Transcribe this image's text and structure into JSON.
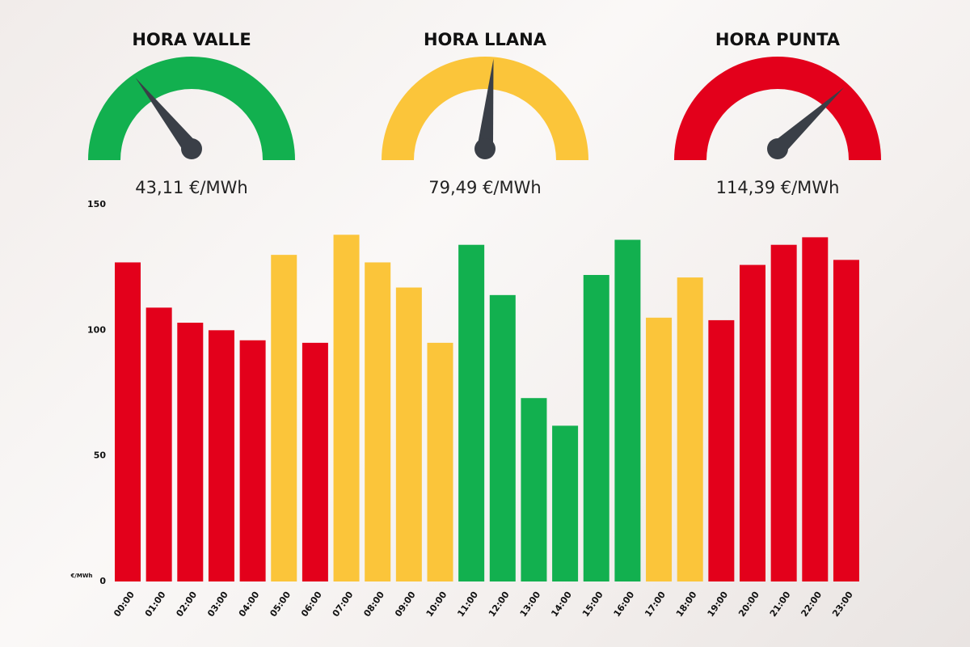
{
  "gauges": [
    {
      "title": "HORA VALLE",
      "value": 43.11,
      "value_label": "43,11 €/MWh",
      "color": "#12b04f"
    },
    {
      "title": "HORA LLANA",
      "value": 79.49,
      "value_label": "79,49 €/MWh",
      "color": "#fbc53a"
    },
    {
      "title": "HORA PUNTA",
      "value": 114.39,
      "value_label": "114,39 €/MWh",
      "color": "#e3001b"
    }
  ],
  "chart_data": {
    "type": "bar",
    "y_label": "€/MWh",
    "categories": [
      "00:00",
      "01:00",
      "02:00",
      "03:00",
      "04:00",
      "05:00",
      "06:00",
      "07:00",
      "08:00",
      "09:00",
      "10:00",
      "11:00",
      "12:00",
      "13:00",
      "14:00",
      "15:00",
      "16:00",
      "17:00",
      "18:00",
      "19:00",
      "20:00",
      "21:00",
      "22:00",
      "23:00"
    ],
    "values": [
      127,
      109,
      103,
      100,
      96,
      130,
      95,
      138,
      127,
      117,
      95,
      134,
      114,
      73,
      62,
      122,
      136,
      105,
      121,
      104,
      126,
      134,
      137,
      128
    ],
    "colors": [
      "#e3001b",
      "#e3001b",
      "#e3001b",
      "#e3001b",
      "#e3001b",
      "#fbc53a",
      "#e3001b",
      "#fbc53a",
      "#fbc53a",
      "#fbc53a",
      "#fbc53a",
      "#12b04f",
      "#12b04f",
      "#12b04f",
      "#12b04f",
      "#12b04f",
      "#12b04f",
      "#fbc53a",
      "#fbc53a",
      "#e3001b",
      "#e3001b",
      "#e3001b",
      "#e3001b",
      "#e3001b"
    ],
    "ylim": [
      0,
      150
    ],
    "yticks": [
      0,
      50,
      100,
      150
    ]
  }
}
